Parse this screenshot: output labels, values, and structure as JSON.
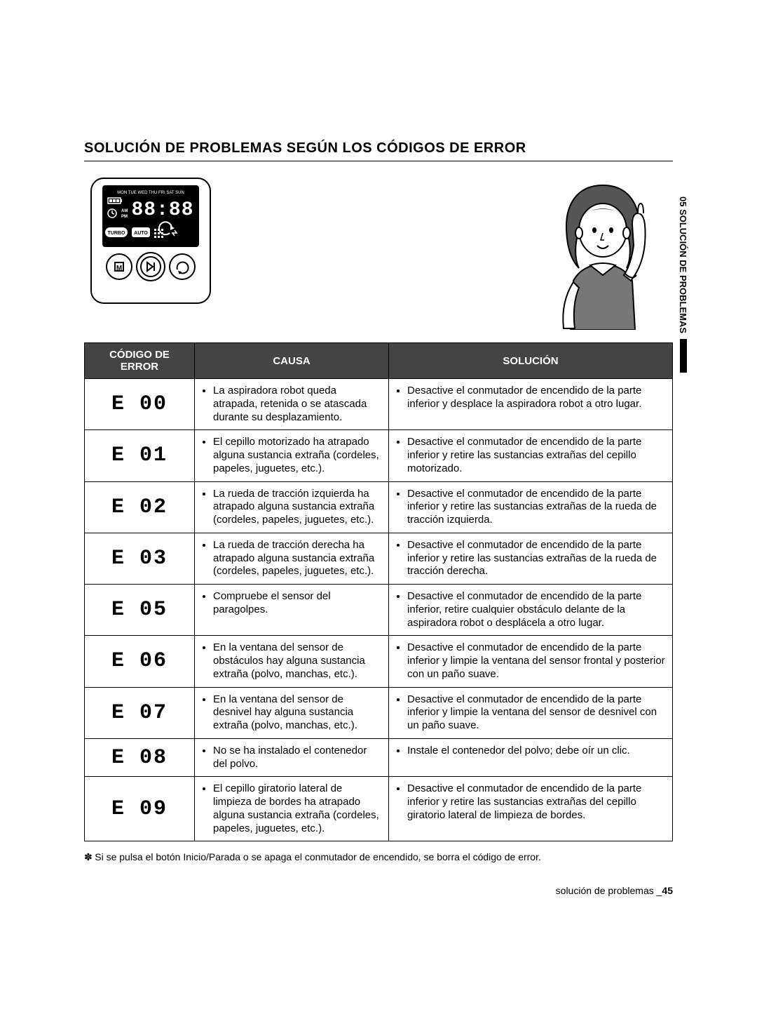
{
  "heading": "SOLUCIÓN DE PROBLEMAS SEGÚN LOS CÓDIGOS DE ERROR",
  "side_tab": "05 SOLUCIÓN DE PROBLEMAS",
  "table": {
    "headers": {
      "code": "CÓDIGO DE ERROR",
      "cause": "CAUSA",
      "solution": "SOLUCIÓN"
    },
    "rows": [
      {
        "code_display": "E 00",
        "cause": "La aspiradora robot queda atrapada, retenida o se atascada durante su desplazamiento.",
        "solution": "Desactive el conmutador de encendido de la parte inferior y desplace la aspiradora robot a otro lugar."
      },
      {
        "code_display": "E 01",
        "cause": "El cepillo motorizado ha atrapado alguna sustancia extraña (cordeles, papeles, juguetes, etc.).",
        "solution": "Desactive el conmutador de encendido de la parte inferior y retire las sustancias extrañas del cepillo motorizado."
      },
      {
        "code_display": "E 02",
        "cause": "La rueda de tracción izquierda ha atrapado alguna sustancia extraña (cordeles, papeles, juguetes, etc.).",
        "solution": "Desactive el conmutador de encendido de la parte inferior y retire las sustancias extrañas de la rueda de tracción izquierda."
      },
      {
        "code_display": "E 03",
        "cause": "La rueda de tracción derecha ha atrapado alguna sustancia extraña (cordeles, papeles, juguetes, etc.).",
        "solution": "Desactive el conmutador de encendido de la parte inferior y retire las sustancias extrañas de la rueda de tracción derecha."
      },
      {
        "code_display": "E 05",
        "cause": "Compruebe el sensor del paragolpes.",
        "solution": "Desactive el conmutador de encendido de la parte inferior, retire cualquier obstáculo delante de la aspiradora robot o desplácela a otro lugar."
      },
      {
        "code_display": "E 06",
        "cause": "En la ventana del sensor de obstáculos hay alguna sustancia extraña (polvo, manchas, etc.).",
        "solution": "Desactive el conmutador de encendido de la parte inferior y limpie la ventana del sensor frontal y posterior con un paño suave."
      },
      {
        "code_display": "E 07",
        "cause": "En la ventana del sensor de desnivel hay alguna sustancia extraña (polvo, manchas, etc.).",
        "solution": "Desactive el conmutador de encendido de la parte inferior y limpie la ventana del sensor de desnivel con un paño suave."
      },
      {
        "code_display": "E 08",
        "cause": "No se ha instalado el contenedor del polvo.",
        "solution": "Instale el contenedor del polvo; debe oír un clic."
      },
      {
        "code_display": "E 09",
        "cause": "El cepillo giratorio lateral de limpieza de bordes ha atrapado alguna sustancia extraña (cordeles, papeles, juguetes, etc.).",
        "solution": "Desactive el conmutador de encendido de la parte inferior y retire las sustancias extrañas del cepillo giratorio lateral de limpieza de bordes."
      }
    ]
  },
  "footnote": "Si se pulsa el botón Inicio/Parada o se apaga el conmutador de encendido, se borra el código de error.",
  "footer": {
    "text": "solución de problemas _",
    "page": "45"
  },
  "display_panel": {
    "days": "MON TUE WED THU FRI SAT SUN",
    "modes": {
      "turbo": "TURBO",
      "auto": "AUTO"
    },
    "ampm": {
      "am": "AM",
      "pm": "PM"
    }
  }
}
